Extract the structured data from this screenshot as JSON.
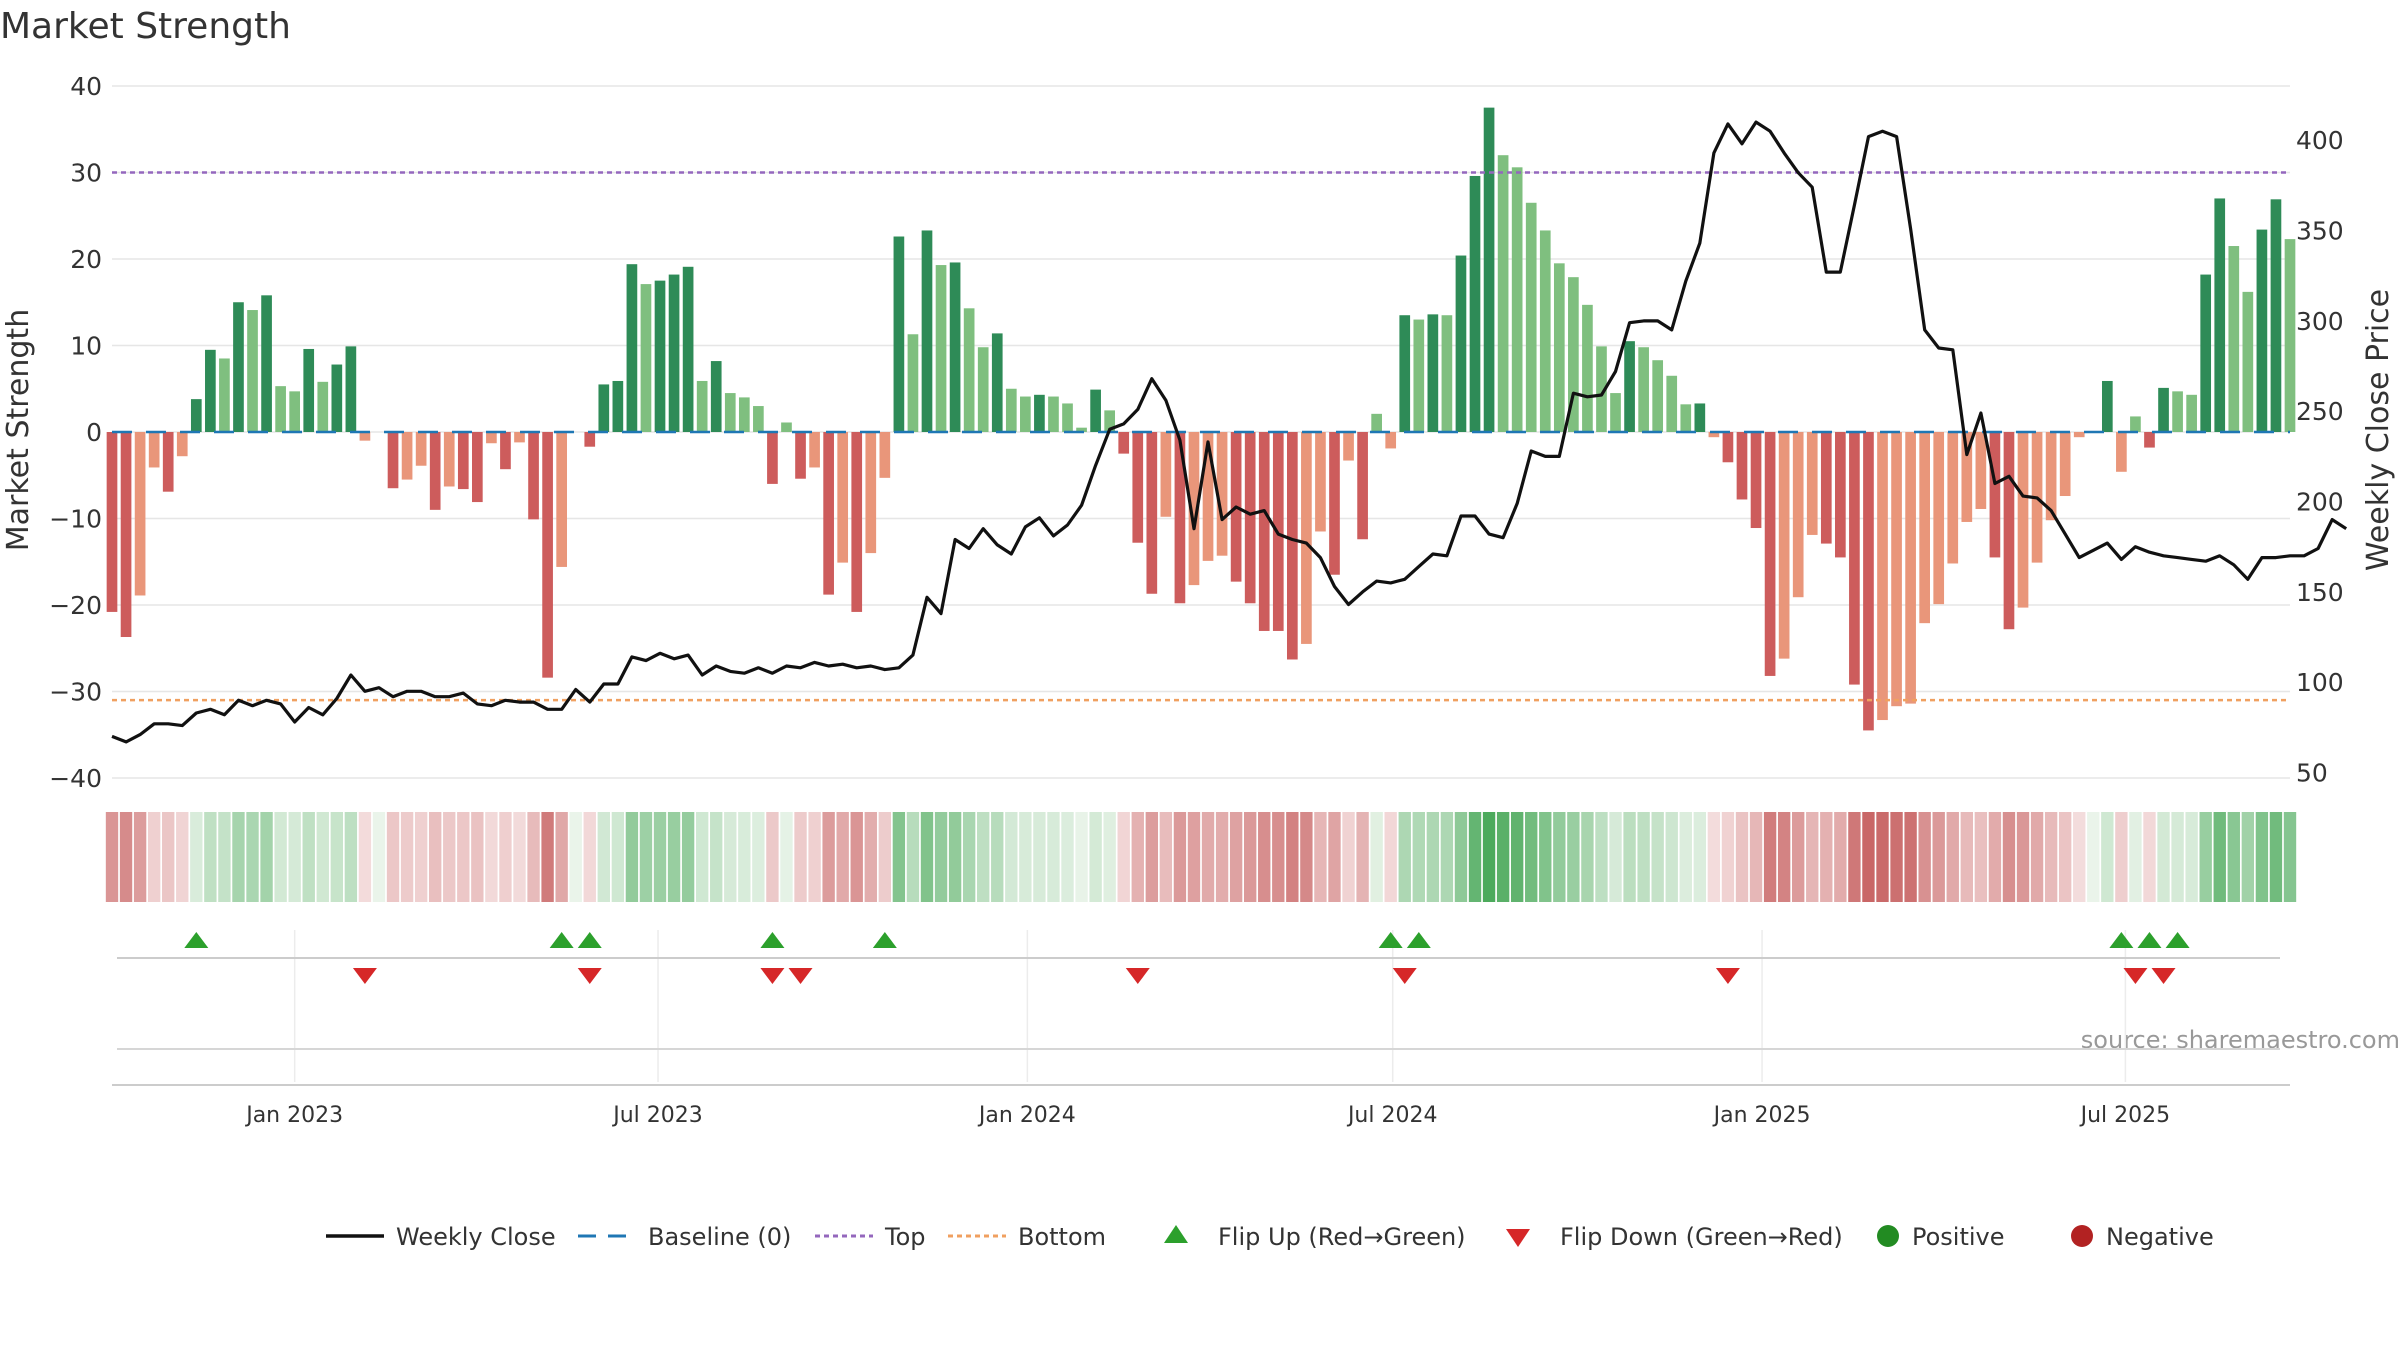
{
  "chart_data": {
    "type": "bar",
    "title": "Market Strength",
    "ylabel_left": "Market Strength",
    "ylabel_right": "Weekly Close Price",
    "ylim_left": [
      -40,
      40
    ],
    "yticks_left": [
      40,
      30,
      20,
      10,
      0,
      -10,
      -20,
      -30,
      -40
    ],
    "ytick_labels_left": [
      "40",
      "30",
      "20",
      "10",
      "0",
      "−10",
      "−20",
      "−30",
      "−40"
    ],
    "ylim_right": [
      47,
      430
    ],
    "yticks_right": [
      400,
      350,
      300,
      250,
      200,
      150,
      100,
      50
    ],
    "ytick_labels_right": [
      "400",
      "350",
      "300",
      "250",
      "200",
      "150",
      "100",
      "50"
    ],
    "xlim": [
      "2022-10-02",
      "2025-09-21"
    ],
    "xticks": [
      {
        "date": "2023-01-01",
        "label": "Jan 2023"
      },
      {
        "date": "2023-07-01",
        "label": "Jul 2023"
      },
      {
        "date": "2024-01-01",
        "label": "Jan 2024"
      },
      {
        "date": "2024-07-01",
        "label": "Jul 2024"
      },
      {
        "date": "2025-01-01",
        "label": "Jan 2025"
      },
      {
        "date": "2025-07-01",
        "label": "Jul 2025"
      }
    ],
    "start_week": "2022-10-02",
    "week_step_days": 7,
    "strength": [
      -20.8,
      -23.7,
      -18.9,
      -4.1,
      -6.9,
      -2.8,
      3.8,
      9.5,
      8.5,
      15.0,
      14.1,
      15.8,
      5.3,
      4.7,
      9.6,
      5.8,
      7.8,
      9.9,
      -1.0,
      0,
      -6.5,
      -5.5,
      -3.9,
      -9.0,
      -6.3,
      -6.6,
      -8.1,
      -1.3,
      -4.3,
      -1.2,
      -10.1,
      -28.4,
      -15.6,
      0,
      -1.7,
      5.5,
      5.9,
      19.4,
      17.1,
      17.5,
      18.2,
      19.1,
      5.9,
      8.2,
      4.5,
      4.0,
      3.0,
      -6.0,
      1.1,
      -5.4,
      -4.1,
      -18.8,
      -15.1,
      -20.8,
      -14.0,
      -5.3,
      22.6,
      11.3,
      23.3,
      19.3,
      19.6,
      14.3,
      9.8,
      11.4,
      5.0,
      4.1,
      4.3,
      4.1,
      3.3,
      0.5,
      4.9,
      2.5,
      -2.5,
      -12.8,
      -18.7,
      -9.8,
      -19.8,
      -17.7,
      -14.9,
      -14.3,
      -17.3,
      -19.8,
      -23.0,
      -23.0,
      -26.3,
      -24.5,
      -11.5,
      -16.5,
      -3.3,
      -12.4,
      2.1,
      -1.9,
      13.5,
      13.0,
      13.6,
      13.5,
      20.4,
      29.6,
      37.5,
      32.0,
      30.6,
      26.5,
      23.3,
      19.5,
      17.9,
      14.7,
      9.9,
      4.5,
      10.5,
      9.8,
      8.3,
      6.5,
      3.2,
      3.3,
      -0.6,
      -3.5,
      -7.8,
      -11.1,
      -28.2,
      -26.2,
      -19.1,
      -11.9,
      -12.9,
      -14.5,
      -29.2,
      -34.5,
      -33.3,
      -31.7,
      -31.4,
      -22.1,
      -19.9,
      -15.2,
      -10.4,
      -8.9,
      -14.5,
      -22.8,
      -20.3,
      -15.1,
      -10.2,
      -7.4,
      -0.6,
      0,
      5.9,
      -4.6,
      1.8,
      -1.8,
      5.1,
      4.7,
      4.3,
      18.2,
      27.0,
      21.5,
      16.2,
      23.4,
      26.9,
      22.3
    ],
    "close": [
      70,
      67,
      71,
      77,
      77,
      76,
      83,
      85,
      82,
      90,
      87,
      90,
      88,
      78,
      86,
      82,
      91,
      104,
      95,
      97,
      92,
      95,
      95,
      92,
      92,
      94,
      88,
      87,
      90,
      89,
      89,
      85,
      85,
      96,
      89,
      99,
      99,
      114,
      112,
      116,
      113,
      115,
      104,
      109,
      106,
      105,
      108,
      105,
      109,
      108,
      111,
      109,
      110,
      108,
      109,
      107,
      108,
      115,
      147,
      138,
      179,
      174,
      185,
      176,
      171,
      186,
      191,
      181,
      187,
      198,
      220,
      240,
      243,
      251,
      268,
      256,
      234,
      185,
      233,
      190,
      197,
      193,
      195,
      182,
      179,
      177,
      169,
      153,
      143,
      150,
      156,
      155,
      157,
      164,
      171,
      170,
      192,
      192,
      182,
      180,
      199,
      228,
      225,
      225,
      260,
      258,
      259,
      272,
      299,
      300,
      300,
      295,
      322,
      343,
      393,
      409,
      398,
      410,
      405,
      393,
      382,
      374,
      327,
      327,
      364,
      402,
      405,
      402,
      351,
      295,
      285,
      284,
      226,
      249,
      210,
      214,
      203,
      202,
      195,
      182,
      169,
      173,
      177,
      168,
      175,
      172,
      170,
      169,
      168,
      167,
      170,
      165,
      157,
      169,
      169,
      170,
      170,
      174,
      190,
      185
    ],
    "series": [
      {
        "name": "Weekly Close",
        "color": "#111111"
      },
      {
        "name": "Baseline (0)",
        "color": "#1f77b4"
      },
      {
        "name": "Top",
        "color": "#9467bd",
        "value": 30
      },
      {
        "name": "Bottom",
        "color": "#f0a060",
        "value": -31
      }
    ],
    "flip_up_weeks": [
      6,
      32,
      34,
      47,
      55,
      91,
      93,
      143,
      145,
      147
    ],
    "flip_down_weeks": [
      18,
      34,
      47,
      49,
      73,
      92,
      115,
      144,
      146
    ],
    "legend_position": "bottom",
    "grid": true,
    "colors": {
      "green_strong": "#2e8b57",
      "green_light": "#7fbf7f",
      "red_strong": "#cd5c5c",
      "red_light": "#e9967a"
    }
  },
  "legend": [
    {
      "label": "Weekly Close",
      "marker": "line",
      "color": "#111111"
    },
    {
      "label": "Baseline (0)",
      "marker": "dash",
      "color": "#1f77b4"
    },
    {
      "label": "Top",
      "marker": "dot",
      "color": "#9467bd"
    },
    {
      "label": "Bottom",
      "marker": "dot",
      "color": "#f0a060"
    },
    {
      "label": "Flip Up (Red→Green)",
      "marker": "triangle-up",
      "color": "#2ca02c"
    },
    {
      "label": "Flip Down (Green→Red)",
      "marker": "triangle-down",
      "color": "#d62728"
    },
    {
      "label": "Positive",
      "marker": "circle",
      "color": "#228b22"
    },
    {
      "label": "Negative",
      "marker": "circle",
      "color": "#b22222"
    }
  ],
  "source": "source: sharemaestro.com"
}
